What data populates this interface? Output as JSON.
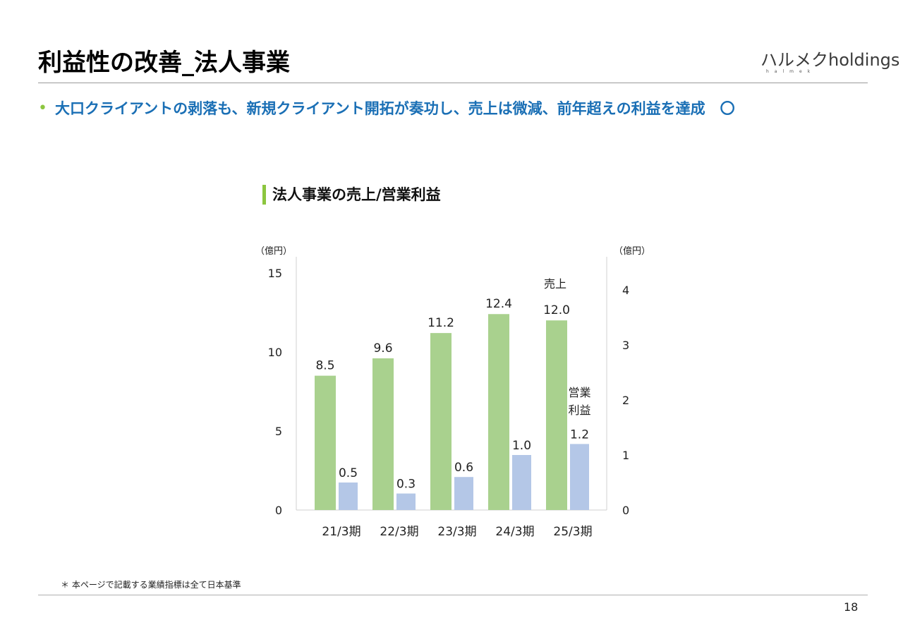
{
  "slide": {
    "title": "利益性の改善_法人事業",
    "headline": "大口クライアントの剥落も、新規クライアント開拓が奏功し、売上は微減、前年超えの利益を達成　〇",
    "footnote": "＊ 本ページで記載する業績指標は全て日本基準",
    "page_number": "18",
    "logo_text": "ハルメクholdings",
    "logo_subtext": "halmek"
  },
  "colors": {
    "headline": "#1a6fb5",
    "bullet": "#8cc63f",
    "title_bar": "#8cc63f",
    "sales_bar": "#a9d18e",
    "profit_bar": "#b4c7e7"
  },
  "chart_data": {
    "type": "bar",
    "title": "法人事業の売上/営業利益",
    "categories": [
      "21/3期",
      "22/3期",
      "23/3期",
      "24/3期",
      "25/3期"
    ],
    "series": [
      {
        "name": "売上",
        "axis": "left",
        "values": [
          8.5,
          9.6,
          11.2,
          12.4,
          12.0
        ],
        "labels": [
          "8.5",
          "9.6",
          "11.2",
          "12.4",
          "12.0"
        ],
        "color": "#a9d18e"
      },
      {
        "name": "営業利益",
        "axis": "right",
        "values": [
          0.5,
          0.3,
          0.6,
          1.0,
          1.2
        ],
        "labels": [
          "0.5",
          "0.3",
          "0.6",
          "1.0",
          "1.2"
        ],
        "color": "#b4c7e7"
      }
    ],
    "y_left": {
      "unit": "（億円）",
      "ylim": [
        0,
        15
      ],
      "ticks": [
        0,
        5,
        10,
        15
      ]
    },
    "y_right": {
      "unit": "（億円）",
      "ylim": [
        0,
        4.3
      ],
      "ticks": [
        0,
        1,
        2,
        3,
        4
      ]
    },
    "grid": false,
    "legend": "inline labels on last category"
  }
}
